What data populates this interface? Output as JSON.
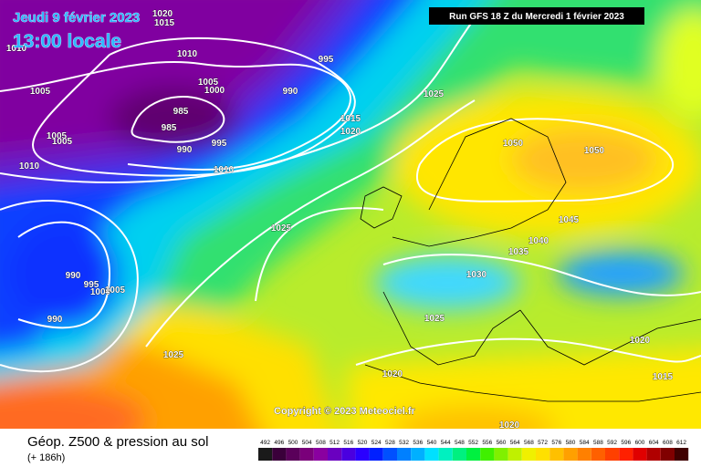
{
  "header": {
    "date": "Jeudi 9 février 2023",
    "time": "13:00 locale",
    "run": "Run GFS 18 Z du Mercredi 1 février 2023"
  },
  "map": {
    "isobar_labels": [
      "1020",
      "1015",
      "1010",
      "1010",
      "995",
      "1005",
      "1000",
      "990",
      "1005",
      "985",
      "985",
      "1025",
      "1015",
      "1020",
      "1005",
      "1005",
      "995",
      "990",
      "1010",
      "1010",
      "1050",
      "1050",
      "1045",
      "1025",
      "1040",
      "1035",
      "1030",
      "990",
      "995",
      "1000",
      "1005",
      "990",
      "1025",
      "1020",
      "1025",
      "1020",
      "1015",
      "1020"
    ],
    "copyright": "Copyright © 2023 Meteociel.fr"
  },
  "footer": {
    "title": "Géop. Z500 & pression au sol",
    "lead_time": "(+ 186h)",
    "scale": {
      "labels": [
        492,
        496,
        500,
        504,
        508,
        512,
        516,
        520,
        524,
        528,
        532,
        536,
        540,
        544,
        548,
        552,
        556,
        560,
        564,
        568,
        572,
        576,
        580,
        584,
        588,
        592,
        596,
        600,
        604,
        608,
        612
      ],
      "colors": [
        "#1a1a1a",
        "#3a003a",
        "#5a005a",
        "#7a007a",
        "#8a00a0",
        "#6a00c0",
        "#4a00e0",
        "#2a00ff",
        "#0020ff",
        "#0050ff",
        "#0080ff",
        "#00b0ff",
        "#00e0ff",
        "#00f0c0",
        "#00f080",
        "#00f040",
        "#40f000",
        "#80f000",
        "#c0f000",
        "#f0f000",
        "#ffe000",
        "#ffc000",
        "#ffa000",
        "#ff8000",
        "#ff6000",
        "#ff4000",
        "#ff2000",
        "#e00000",
        "#b00000",
        "#800000",
        "#400000"
      ]
    }
  }
}
